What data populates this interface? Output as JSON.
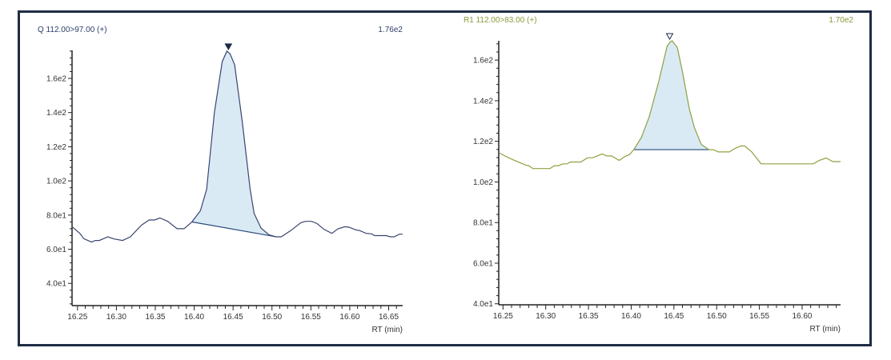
{
  "chart_data": [
    {
      "type": "line",
      "title": "Q 112.00>97.00 (+)",
      "max_label": "1.76e2",
      "xlabel": "RT (min)",
      "ylabel": "",
      "xlim": [
        16.243,
        16.668
      ],
      "ylim": [
        27,
        176.4
      ],
      "xticks": [
        "16.25",
        "16.30",
        "16.35",
        "16.40",
        "16.45",
        "16.50",
        "16.55",
        "16.60",
        "16.65"
      ],
      "yticks": [
        "4.0e1",
        "6.0e1",
        "8.0e1",
        "1.0e2",
        "1.2e2",
        "1.4e2",
        "1.6e2"
      ],
      "line_color": "#3a4570",
      "title_color": "#2c3e6b",
      "fill_color": "#d9eaf5",
      "peak_marker": "filled-triangle",
      "peak_rt": 16.444,
      "integration": {
        "start": [
          16.397,
          76
        ],
        "end": [
          16.505,
          67.3
        ]
      },
      "x": [
        16.243,
        16.253,
        16.258,
        16.268,
        16.273,
        16.278,
        16.289,
        16.297,
        16.308,
        16.318,
        16.332,
        16.342,
        16.349,
        16.356,
        16.366,
        16.378,
        16.387,
        16.397,
        16.408,
        16.416,
        16.426,
        16.436,
        16.442,
        16.446,
        16.452,
        16.462,
        16.472,
        16.477,
        16.486,
        16.496,
        16.505,
        16.512,
        16.524,
        16.537,
        16.543,
        16.551,
        16.558,
        16.567,
        16.577,
        16.585,
        16.594,
        16.599,
        16.608,
        16.613,
        16.621,
        16.628,
        16.632,
        16.647,
        16.652,
        16.657,
        16.664,
        16.668
      ],
      "y": [
        73.2,
        69.3,
        66.2,
        64.2,
        65.1,
        65.1,
        67.3,
        66,
        65.1,
        67.3,
        74,
        77.1,
        77.1,
        78.3,
        76.3,
        72,
        72,
        76,
        82.5,
        95,
        140,
        169.8,
        176,
        174.5,
        168,
        134,
        95,
        81,
        72.4,
        68.5,
        67.3,
        67.3,
        70.9,
        75.5,
        76.3,
        76.3,
        75,
        71.6,
        69.3,
        72,
        73.2,
        72.9,
        71.3,
        70.9,
        69.3,
        69,
        68,
        68,
        67.3,
        67.3,
        68.8,
        68.8
      ]
    },
    {
      "type": "line",
      "title": "R1 112.00>83.00 (+)",
      "max_label": "1.70e2",
      "xlabel": "RT (min)",
      "ylabel": "",
      "xlim": [
        16.245,
        16.645
      ],
      "ylim": [
        39.5,
        169.5
      ],
      "xticks": [
        "16.25",
        "16.30",
        "16.35",
        "16.40",
        "16.45",
        "16.50",
        "16.55",
        "16.60"
      ],
      "yticks": [
        "4.0e1",
        "6.0e1",
        "8.0e1",
        "1.0e2",
        "1.2e2",
        "1.4e2",
        "1.6e2"
      ],
      "line_color": "#8ea040",
      "title_color": "#8a9a3a",
      "fill_color": "#d9eaf5",
      "peak_marker": "hollow-triangle",
      "peak_rt": 16.445,
      "integration": {
        "start": [
          16.403,
          115.9
        ],
        "end": [
          16.491,
          115.9
        ]
      },
      "x": [
        16.246,
        16.252,
        16.262,
        16.277,
        16.28,
        16.285,
        16.305,
        16.31,
        16.315,
        16.32,
        16.325,
        16.329,
        16.341,
        16.349,
        16.355,
        16.366,
        16.371,
        16.377,
        16.386,
        16.393,
        16.398,
        16.403,
        16.412,
        16.421,
        16.432,
        16.442,
        16.446,
        16.448,
        16.454,
        16.46,
        16.468,
        16.474,
        16.482,
        16.491,
        16.496,
        16.502,
        16.51,
        16.515,
        16.521,
        16.528,
        16.533,
        16.541,
        16.552,
        16.613,
        16.62,
        16.628,
        16.636,
        16.645
      ],
      "y": [
        114.2,
        112.8,
        110.9,
        108.2,
        108,
        106.6,
        106.6,
        108,
        108,
        108.9,
        108.9,
        109.8,
        109.8,
        111.9,
        111.9,
        113.8,
        112.8,
        112.8,
        110.6,
        112.6,
        113.5,
        115.9,
        122,
        132,
        149,
        166.9,
        169.1,
        169.5,
        166.2,
        154.3,
        135.9,
        126.7,
        118.5,
        115.9,
        115.9,
        114.8,
        114.8,
        114.8,
        116.4,
        117.7,
        117.7,
        114.8,
        108.9,
        108.9,
        110.6,
        111.8,
        110,
        110
      ]
    }
  ]
}
